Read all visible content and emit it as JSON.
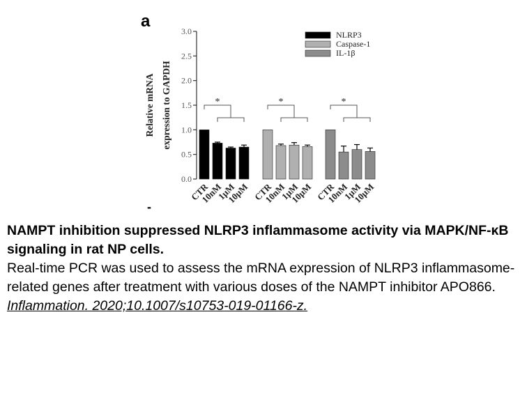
{
  "panel_label": "a",
  "stray_mark": "-",
  "chart_data": {
    "type": "bar",
    "ylabel": "Relative mRNA expression to GAPDH",
    "ylim": [
      0,
      3.0
    ],
    "yticks": [
      "0.0",
      "0.5",
      "1.0",
      "1.5",
      "2.0",
      "2.5",
      "3.0"
    ],
    "ytick_values": [
      0,
      0.5,
      1.0,
      1.5,
      2.0,
      2.5,
      3.0
    ],
    "categories": [
      "CTR",
      "10nM",
      "1μM",
      "10μM"
    ],
    "legend_position": "top-right",
    "series": [
      {
        "name": "NLRP3",
        "color": "#000000",
        "values": [
          1.0,
          0.73,
          0.63,
          0.65
        ],
        "errors": [
          0.0,
          0.02,
          0.02,
          0.04
        ]
      },
      {
        "name": "Caspase-1",
        "color": "#b0b0b0",
        "values": [
          1.0,
          0.68,
          0.69,
          0.66
        ],
        "errors": [
          0.0,
          0.03,
          0.05,
          0.03
        ]
      },
      {
        "name": "IL-1β",
        "color": "#8c8c8c",
        "values": [
          1.0,
          0.55,
          0.6,
          0.56
        ],
        "errors": [
          0.0,
          0.12,
          0.1,
          0.07
        ]
      }
    ],
    "significance_mark": "*"
  },
  "caption": {
    "title": "NAMPT inhibition suppressed NLRP3 inflammasome activity via MAPK/NF-κB signaling in rat NP cells.",
    "body": "Real-time PCR was used to assess the mRNA expression of NLRP3 inflammasome-related genes after treatment with various doses of the NAMPT inhibitor APO866.",
    "citation": "Inflammation. 2020;10.1007/s10753-019-01166-z. "
  }
}
